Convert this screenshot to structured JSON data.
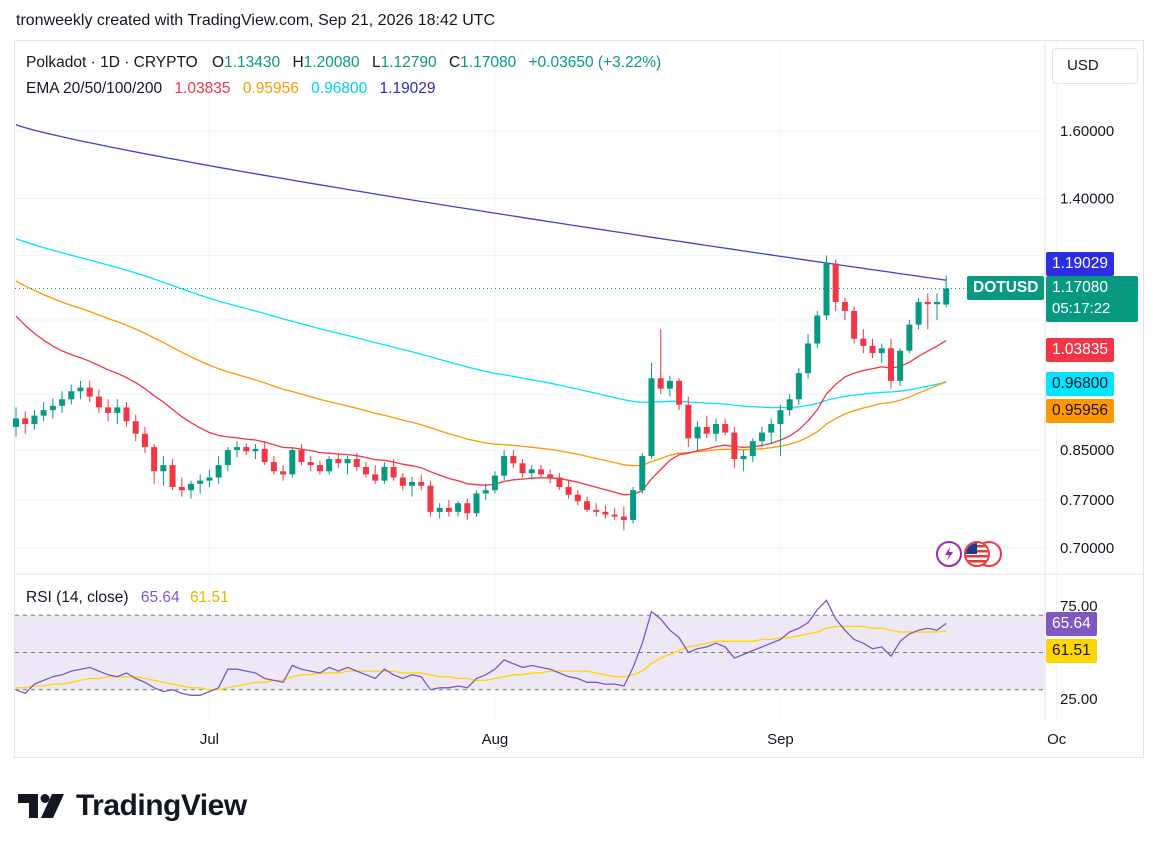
{
  "snapshot_title": "tronweekly created with TradingView.com, Sep 21, 2026 18:42 UTC",
  "currency_button": "USD",
  "legend": {
    "symbol": "Polkadot · 1D · CRYPTO",
    "open_label": "O",
    "open": "1.13430",
    "high_label": "H",
    "high": "1.20080",
    "low_label": "L",
    "low": "1.12790",
    "close_label": "C",
    "close": "1.17080",
    "change": "+0.03650 (+3.22%)",
    "ema_label": "EMA 20/50/100/200",
    "ema20": "1.03835",
    "ema50": "0.95956",
    "ema100": "0.96800",
    "ema200": "1.19029"
  },
  "rsi_legend": {
    "label": "RSI (14, close)",
    "rsi": "65.64",
    "ma": "61.51"
  },
  "price_tags": {
    "ema200": "1.19029",
    "symbol": "DOTUSD",
    "last_price": "1.17080",
    "countdown": "05:17:22",
    "ema20": "1.03835",
    "ema100": "0.96800",
    "ema50": "0.95956",
    "rsi": "65.64",
    "rsi_ma": "61.51"
  },
  "colors": {
    "up": "#089981",
    "down": "#f23645",
    "ema20": "#f23645",
    "ema50": "#ff9800",
    "ema100": "#00e5ff",
    "ema200": "#3f3fd6",
    "rsi": "#7e57c2",
    "rsi_ma": "#ffd600",
    "rsi_band": "#ede7f6"
  },
  "footer_brand": "TradingView",
  "chart_data": {
    "type": "candlestick",
    "title": "Polkadot · 1D · CRYPTO",
    "price_axis": {
      "ticks": [
        {
          "label": "1.60000",
          "value": 1.6
        },
        {
          "label": "1.40000",
          "value": 1.4
        },
        {
          "label": "0.85000",
          "value": 0.85
        },
        {
          "label": "0.77000",
          "value": 0.77
        },
        {
          "label": "0.70000",
          "value": 0.7
        }
      ],
      "scale": "log"
    },
    "time_axis": {
      "ticks": [
        {
          "label": "Jul",
          "day": 0
        },
        {
          "label": "Aug",
          "day": 31
        },
        {
          "label": "Sep",
          "day": 62
        },
        {
          "label": "Oc",
          "day": 92
        }
      ]
    },
    "first_day_offset": -21,
    "candles": [
      [
        0.89,
        0.925,
        0.873,
        0.905
      ],
      [
        0.905,
        0.918,
        0.878,
        0.895
      ],
      [
        0.895,
        0.92,
        0.885,
        0.91
      ],
      [
        0.91,
        0.935,
        0.9,
        0.92
      ],
      [
        0.92,
        0.942,
        0.905,
        0.928
      ],
      [
        0.928,
        0.955,
        0.915,
        0.94
      ],
      [
        0.94,
        0.968,
        0.93,
        0.955
      ],
      [
        0.955,
        0.975,
        0.94,
        0.962
      ],
      [
        0.962,
        0.975,
        0.935,
        0.945
      ],
      [
        0.945,
        0.958,
        0.915,
        0.925
      ],
      [
        0.925,
        0.94,
        0.9,
        0.915
      ],
      [
        0.915,
        0.94,
        0.895,
        0.925
      ],
      [
        0.925,
        0.935,
        0.89,
        0.9
      ],
      [
        0.9,
        0.912,
        0.865,
        0.878
      ],
      [
        0.878,
        0.89,
        0.845,
        0.855
      ],
      [
        0.855,
        0.86,
        0.795,
        0.815
      ],
      [
        0.815,
        0.84,
        0.792,
        0.825
      ],
      [
        0.825,
        0.835,
        0.785,
        0.79
      ],
      [
        0.79,
        0.805,
        0.775,
        0.785
      ],
      [
        0.785,
        0.8,
        0.772,
        0.795
      ],
      [
        0.795,
        0.81,
        0.78,
        0.8
      ],
      [
        0.8,
        0.818,
        0.79,
        0.805
      ],
      [
        0.805,
        0.84,
        0.795,
        0.825
      ],
      [
        0.825,
        0.855,
        0.815,
        0.85
      ],
      [
        0.85,
        0.865,
        0.838,
        0.855
      ],
      [
        0.855,
        0.862,
        0.842,
        0.848
      ],
      [
        0.848,
        0.86,
        0.835,
        0.852
      ],
      [
        0.852,
        0.865,
        0.825,
        0.83
      ],
      [
        0.83,
        0.84,
        0.81,
        0.815
      ],
      [
        0.815,
        0.825,
        0.8,
        0.81
      ],
      [
        0.81,
        0.855,
        0.805,
        0.85
      ],
      [
        0.85,
        0.86,
        0.825,
        0.83
      ],
      [
        0.83,
        0.84,
        0.815,
        0.825
      ],
      [
        0.825,
        0.832,
        0.81,
        0.815
      ],
      [
        0.815,
        0.84,
        0.81,
        0.835
      ],
      [
        0.835,
        0.845,
        0.82,
        0.828
      ],
      [
        0.828,
        0.84,
        0.81,
        0.835
      ],
      [
        0.835,
        0.845,
        0.815,
        0.822
      ],
      [
        0.822,
        0.83,
        0.805,
        0.81
      ],
      [
        0.81,
        0.825,
        0.795,
        0.8
      ],
      [
        0.8,
        0.83,
        0.795,
        0.822
      ],
      [
        0.822,
        0.835,
        0.8,
        0.805
      ],
      [
        0.805,
        0.812,
        0.785,
        0.792
      ],
      [
        0.792,
        0.806,
        0.775,
        0.798
      ],
      [
        0.798,
        0.81,
        0.785,
        0.792
      ],
      [
        0.792,
        0.8,
        0.745,
        0.752
      ],
      [
        0.752,
        0.765,
        0.742,
        0.758
      ],
      [
        0.758,
        0.77,
        0.745,
        0.752
      ],
      [
        0.752,
        0.768,
        0.745,
        0.765
      ],
      [
        0.765,
        0.772,
        0.74,
        0.75
      ],
      [
        0.75,
        0.785,
        0.745,
        0.78
      ],
      [
        0.78,
        0.795,
        0.77,
        0.785
      ],
      [
        0.785,
        0.815,
        0.78,
        0.808
      ],
      [
        0.808,
        0.85,
        0.8,
        0.84
      ],
      [
        0.84,
        0.85,
        0.82,
        0.828
      ],
      [
        0.828,
        0.835,
        0.805,
        0.812
      ],
      [
        0.812,
        0.825,
        0.802,
        0.818
      ],
      [
        0.818,
        0.825,
        0.805,
        0.81
      ],
      [
        0.81,
        0.818,
        0.796,
        0.805
      ],
      [
        0.805,
        0.812,
        0.785,
        0.79
      ],
      [
        0.79,
        0.8,
        0.772,
        0.778
      ],
      [
        0.778,
        0.785,
        0.762,
        0.768
      ],
      [
        0.768,
        0.775,
        0.752,
        0.755
      ],
      [
        0.755,
        0.765,
        0.745,
        0.752
      ],
      [
        0.752,
        0.762,
        0.742,
        0.748
      ],
      [
        0.748,
        0.758,
        0.74,
        0.745
      ],
      [
        0.745,
        0.76,
        0.725,
        0.74
      ],
      [
        0.74,
        0.79,
        0.735,
        0.785
      ],
      [
        0.785,
        0.845,
        0.78,
        0.84
      ],
      [
        0.84,
        1.01,
        0.835,
        0.98
      ],
      [
        0.98,
        1.08,
        0.95,
        0.96
      ],
      [
        0.96,
        0.985,
        0.945,
        0.975
      ],
      [
        0.975,
        0.98,
        0.92,
        0.93
      ],
      [
        0.93,
        0.945,
        0.855,
        0.87
      ],
      [
        0.87,
        0.9,
        0.85,
        0.89
      ],
      [
        0.89,
        0.91,
        0.87,
        0.878
      ],
      [
        0.878,
        0.905,
        0.865,
        0.895
      ],
      [
        0.895,
        0.905,
        0.875,
        0.88
      ],
      [
        0.88,
        0.89,
        0.82,
        0.835
      ],
      [
        0.835,
        0.85,
        0.815,
        0.84
      ],
      [
        0.84,
        0.87,
        0.83,
        0.865
      ],
      [
        0.865,
        0.89,
        0.855,
        0.88
      ],
      [
        0.88,
        0.905,
        0.86,
        0.895
      ],
      [
        0.895,
        0.93,
        0.84,
        0.92
      ],
      [
        0.92,
        0.95,
        0.91,
        0.94
      ],
      [
        0.94,
        1.0,
        0.93,
        0.99
      ],
      [
        0.99,
        1.07,
        0.98,
        1.05
      ],
      [
        1.05,
        1.12,
        1.04,
        1.11
      ],
      [
        1.11,
        1.25,
        1.1,
        1.23
      ],
      [
        1.23,
        1.24,
        1.12,
        1.14
      ],
      [
        1.14,
        1.15,
        1.1,
        1.12
      ],
      [
        1.12,
        1.13,
        1.05,
        1.06
      ],
      [
        1.06,
        1.08,
        1.03,
        1.045
      ],
      [
        1.045,
        1.06,
        1.02,
        1.03
      ],
      [
        1.03,
        1.05,
        1.01,
        1.04
      ],
      [
        1.04,
        1.06,
        0.96,
        0.975
      ],
      [
        0.975,
        1.04,
        0.965,
        1.035
      ],
      [
        1.035,
        1.1,
        1.03,
        1.09
      ],
      [
        1.09,
        1.15,
        1.08,
        1.14
      ],
      [
        1.14,
        1.16,
        1.08,
        1.135
      ],
      [
        1.135,
        1.16,
        1.1,
        1.14
      ],
      [
        1.1343,
        1.2008,
        1.1279,
        1.1708
      ]
    ],
    "ema200": {
      "start": 1.62,
      "end": 1.19029
    },
    "ema100": {
      "start": 1.3,
      "end": 0.968
    },
    "ema50": {
      "start": 1.2,
      "end": 0.95956
    },
    "ema20": {
      "start": 1.13,
      "end": 1.03835
    },
    "rsi": {
      "ticks": [
        {
          "label": "75.00",
          "value": 75
        },
        {
          "label": "25.00",
          "value": 25
        }
      ],
      "overbought": 70,
      "oversold": 30,
      "middle": 50,
      "values": [
        30,
        28,
        33,
        35,
        37,
        38,
        40,
        41,
        42,
        40,
        38,
        37,
        39,
        36,
        34,
        31,
        29,
        30,
        28,
        27,
        27,
        29,
        31,
        41,
        41,
        40,
        39,
        36,
        35,
        34,
        43,
        41,
        40,
        39,
        42,
        40,
        42,
        40,
        38,
        36,
        41,
        38,
        36,
        38,
        37,
        30,
        31,
        31,
        32,
        31,
        36,
        38,
        41,
        46,
        44,
        42,
        43,
        42,
        41,
        39,
        37,
        36,
        34,
        34,
        33,
        33,
        32,
        42,
        55,
        72,
        68,
        62,
        58,
        50,
        52,
        53,
        55,
        53,
        47,
        49,
        51,
        53,
        55,
        57,
        61,
        63,
        66,
        73,
        78,
        68,
        62,
        57,
        55,
        52,
        53,
        48,
        56,
        60,
        62,
        63,
        62,
        65.64
      ],
      "ma_values": [
        31,
        31,
        32,
        32,
        33,
        33,
        34,
        35,
        36,
        36,
        37,
        37,
        37,
        37,
        36,
        35,
        34,
        33,
        32,
        31,
        31,
        30,
        30,
        31,
        32,
        33,
        34,
        34,
        35,
        35,
        37,
        38,
        38,
        39,
        39,
        39,
        40,
        40,
        40,
        40,
        40,
        40,
        39,
        39,
        39,
        38,
        37,
        37,
        36,
        36,
        35,
        35,
        36,
        37,
        38,
        38,
        39,
        39,
        40,
        40,
        40,
        40,
        40,
        39,
        38,
        37,
        37,
        38,
        40,
        44,
        47,
        49,
        51,
        53,
        54,
        55,
        56,
        56,
        56,
        56,
        56,
        57,
        57,
        58,
        58,
        59,
        60,
        61,
        63,
        64,
        64,
        64,
        64,
        63,
        63,
        62,
        61,
        61,
        61,
        61,
        61,
        61.51
      ]
    }
  }
}
